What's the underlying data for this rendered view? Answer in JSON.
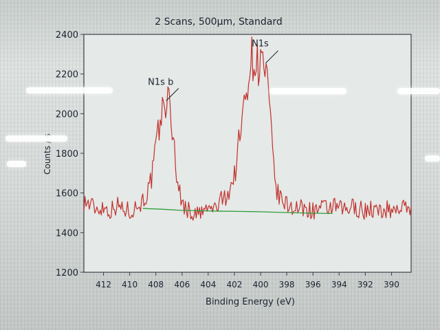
{
  "chart_data": {
    "type": "line",
    "title": "2 Scans,  500µm,  Standard",
    "xlabel": "Binding Energy (eV)",
    "ylabel": "Counts / s",
    "xlim": [
      413.5,
      388.5
    ],
    "ylim": [
      1200,
      2400
    ],
    "x_ticks": [
      412,
      410,
      408,
      406,
      404,
      402,
      400,
      398,
      396,
      394,
      392,
      390
    ],
    "y_ticks": [
      1200,
      1400,
      1600,
      1800,
      2000,
      2200,
      2400
    ],
    "grid": false,
    "annotations": [
      {
        "text": "N1s b",
        "x": 407.0,
        "y": 2100
      },
      {
        "text": "N1s",
        "x": 399.4,
        "y": 2290
      }
    ],
    "series": [
      {
        "role": "spectrum",
        "color": "#c0302c",
        "x": [
          413.5,
          413.0,
          412.5,
          412.0,
          411.5,
          411.0,
          410.5,
          410.0,
          409.5,
          409.0,
          408.5,
          408.2,
          408.0,
          407.8,
          407.6,
          407.4,
          407.2,
          407.0,
          406.8,
          406.6,
          406.4,
          406.2,
          406.0,
          405.5,
          405.0,
          404.5,
          404.0,
          403.5,
          403.0,
          402.5,
          402.0,
          401.8,
          401.5,
          401.2,
          401.0,
          400.8,
          400.6,
          400.4,
          400.2,
          400.0,
          399.8,
          399.6,
          399.4,
          399.2,
          399.0,
          398.8,
          398.6,
          398.4,
          398.0,
          397.5,
          397.0,
          396.5,
          396.0,
          395.5,
          395.0,
          394.5,
          394.0,
          393.5,
          393.0,
          392.5,
          392.0,
          391.5,
          391.0,
          390.5,
          390.0,
          389.5,
          389.0,
          388.5
        ],
        "y": [
          1560,
          1540,
          1520,
          1530,
          1510,
          1540,
          1520,
          1510,
          1530,
          1560,
          1620,
          1720,
          1820,
          1910,
          1980,
          2040,
          2080,
          2050,
          1960,
          1830,
          1700,
          1600,
          1550,
          1510,
          1490,
          1500,
          1520,
          1520,
          1560,
          1600,
          1680,
          1790,
          1920,
          2060,
          2180,
          2260,
          2280,
          2270,
          2250,
          2260,
          2250,
          2200,
          2080,
          1900,
          1720,
          1620,
          1580,
          1560,
          1540,
          1530,
          1520,
          1520,
          1510,
          1520,
          1520,
          1530,
          1520,
          1510,
          1530,
          1520,
          1510,
          1520,
          1500,
          1520,
          1510,
          1530,
          1520,
          1530
        ]
      },
      {
        "role": "background",
        "color": "#2e9e3c",
        "x": [
          409.0,
          407.5,
          406.0,
          404.5,
          403.0,
          401.5,
          400.5,
          399.0,
          397.5,
          396.0,
          395.0,
          394.5
        ],
        "y": [
          1522,
          1518,
          1512,
          1510,
          1508,
          1507,
          1506,
          1503,
          1500,
          1498,
          1497,
          1497
        ]
      }
    ]
  }
}
